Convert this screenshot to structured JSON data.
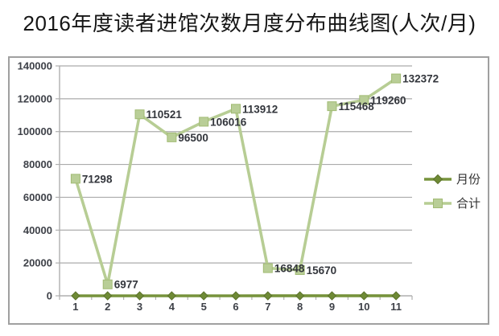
{
  "chart_data": {
    "type": "line",
    "title": "2016年度读者进馆次数月度分布曲线图(人次/月)",
    "categories": [
      "1",
      "2",
      "3",
      "4",
      "5",
      "6",
      "7",
      "8",
      "9",
      "10",
      "11"
    ],
    "series": [
      {
        "name": "月份",
        "values": [
          1,
          2,
          3,
          4,
          5,
          6,
          7,
          8,
          9,
          10,
          11
        ],
        "color": "#77933C",
        "marker": {
          "shape": "diamond",
          "fill": "#6E8A35",
          "stroke": "#5C732C",
          "size": 10
        },
        "show_labels": false
      },
      {
        "name": "合计",
        "values": [
          71298,
          6977,
          110521,
          96500,
          106016,
          113912,
          16848,
          15670,
          115468,
          119260,
          132372
        ],
        "color": "#B7CD94",
        "marker": {
          "shape": "square",
          "fill": "#B9CE97",
          "stroke": "#A2BB74",
          "size": 11
        },
        "show_labels": true
      }
    ],
    "xlabel": "",
    "ylabel": "",
    "ylim": [
      0,
      140000
    ],
    "ytick_step": 20000,
    "ytick_labels": [
      "0",
      "20000",
      "40000",
      "60000",
      "80000",
      "100000",
      "120000",
      "140000"
    ],
    "grid": "horizontal",
    "legend_position": "right",
    "legend_entries": [
      "月份",
      "合计"
    ]
  },
  "colors": {
    "grid": "#ABABAB",
    "axis": "#AFAFAF",
    "frame_border": "#A0A0A0",
    "series_months": "#77933C",
    "series_total": "#B7CD94"
  }
}
